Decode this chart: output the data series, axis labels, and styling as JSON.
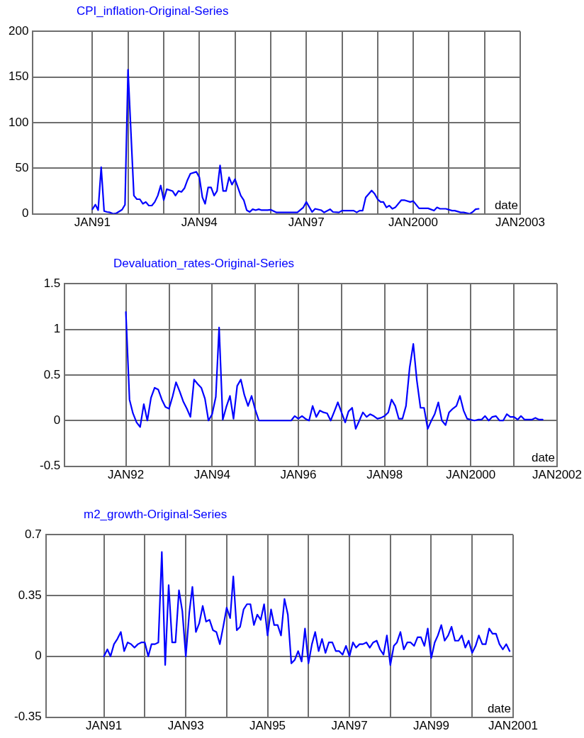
{
  "chart_data": [
    {
      "type": "line",
      "title": "CPI_inflation-Original-Series",
      "xlabel": "date",
      "grid": true,
      "xlim": [
        "1989-05",
        "2003-01"
      ],
      "xticks": [
        {
          "value": "1991-01",
          "label": "JAN91"
        },
        {
          "value": "1992-01",
          "label": null
        },
        {
          "value": "1993-01",
          "label": null
        },
        {
          "value": "1994-01",
          "label": "JAN94"
        },
        {
          "value": "1995-01",
          "label": null
        },
        {
          "value": "1996-01",
          "label": null
        },
        {
          "value": "1997-01",
          "label": "JAN97"
        },
        {
          "value": "1998-01",
          "label": null
        },
        {
          "value": "1999-01",
          "label": null
        },
        {
          "value": "2000-01",
          "label": "JAN2000"
        },
        {
          "value": "2001-01",
          "label": null
        },
        {
          "value": "2002-01",
          "label": null
        },
        {
          "value": "2003-01",
          "label": "JAN2003"
        }
      ],
      "ylim": [
        0,
        200
      ],
      "yticks": [
        0,
        50,
        100,
        150,
        200
      ],
      "series": [
        {
          "color": "#0000ff",
          "x": [
            "1991-01",
            "1991-02",
            "1991-03",
            "1991-04",
            "1991-05",
            "1991-06",
            "1991-07",
            "1991-08",
            "1991-09",
            "1991-11",
            "1991-12",
            "1992-01",
            "1992-03",
            "1992-04",
            "1992-05",
            "1992-06",
            "1992-07",
            "1992-08",
            "1992-09",
            "1992-10",
            "1992-11",
            "1992-12",
            "1993-01",
            "1993-02",
            "1993-04",
            "1993-05",
            "1993-06",
            "1993-07",
            "1993-08",
            "1993-09",
            "1993-10",
            "1993-12",
            "1994-01",
            "1994-02",
            "1994-03",
            "1994-04",
            "1994-05",
            "1994-06",
            "1994-07",
            "1994-08",
            "1994-09",
            "1994-10",
            "1994-11",
            "1994-12",
            "1995-01",
            "1995-03",
            "1995-04",
            "1995-05",
            "1995-06",
            "1995-07",
            "1995-08",
            "1995-09",
            "1995-10",
            "1995-12",
            "1996-01",
            "1996-03",
            "1996-06",
            "1996-10",
            "1996-12",
            "1997-01",
            "1997-03",
            "1997-04",
            "1997-06",
            "1997-07",
            "1997-09",
            "1997-10",
            "1997-12",
            "1998-01",
            "1998-05",
            "1998-06",
            "1998-07",
            "1998-08",
            "1998-09",
            "1998-11",
            "1998-12",
            "1999-01",
            "1999-02",
            "1999-03",
            "1999-04",
            "1999-05",
            "1999-06",
            "1999-07",
            "1999-09",
            "1999-10",
            "1999-12",
            "2000-01",
            "2000-03",
            "2000-06",
            "2000-08",
            "2000-09",
            "2000-10",
            "2000-12",
            "2001-02",
            "2001-03",
            "2001-05",
            "2001-06",
            "2001-08",
            "2001-09",
            "2001-10",
            "2001-11"
          ],
          "values": [
            5,
            10,
            4,
            51,
            3,
            2,
            1.5,
            0,
            0.5,
            4.5,
            10,
            158,
            20,
            16,
            16,
            11,
            13,
            9,
            9,
            13,
            20,
            31,
            15,
            27,
            25,
            20,
            25,
            24,
            28,
            37,
            44,
            46,
            40,
            18,
            11,
            29,
            29,
            20,
            25,
            53,
            25,
            25,
            40,
            32,
            38,
            20,
            15,
            4,
            2,
            5,
            4,
            5,
            4,
            4,
            4.5,
            1.5,
            1.5,
            1.5,
            7,
            13,
            2,
            5.5,
            4,
            1.5,
            5,
            2,
            1.5,
            3.5,
            3.5,
            1.5,
            3.5,
            3.5,
            18,
            25.5,
            22,
            16,
            13,
            13,
            7,
            9,
            5.5,
            7,
            15,
            15,
            13,
            14,
            6,
            6,
            3.5,
            7,
            5.5,
            5.5,
            3.5,
            3.5,
            1.5,
            1.5,
            0,
            2,
            5,
            5.5
          ]
        }
      ]
    },
    {
      "type": "line",
      "title": "Devaluation_rates-Original-Series",
      "xlabel": "date",
      "grid": true,
      "xlim": [
        "1990-08",
        "2002-01"
      ],
      "xticks": [
        {
          "value": "1992-01",
          "label": "JAN92"
        },
        {
          "value": "1993-01",
          "label": null
        },
        {
          "value": "1994-01",
          "label": "JAN94"
        },
        {
          "value": "1995-01",
          "label": null
        },
        {
          "value": "1996-01",
          "label": "JAN96"
        },
        {
          "value": "1997-01",
          "label": null
        },
        {
          "value": "1998-01",
          "label": "JAN98"
        },
        {
          "value": "1999-01",
          "label": null
        },
        {
          "value": "2000-01",
          "label": "JAN2000"
        },
        {
          "value": "2001-01",
          "label": null
        },
        {
          "value": "2002-01",
          "label": "JAN2002"
        }
      ],
      "ylim": [
        -0.5,
        1.5
      ],
      "yticks": [
        -0.5,
        0,
        0.5,
        1,
        1.5
      ],
      "series": [
        {
          "color": "#0000ff",
          "x": [
            "1992-01",
            "1992-02",
            "1992-03",
            "1992-04",
            "1992-05",
            "1992-06",
            "1992-07",
            "1992-08",
            "1992-09",
            "1992-10",
            "1992-11",
            "1992-12",
            "1993-01",
            "1993-02",
            "1993-03",
            "1993-04",
            "1993-05",
            "1993-06",
            "1993-07",
            "1993-08",
            "1993-09",
            "1993-10",
            "1993-11",
            "1993-12",
            "1994-01",
            "1994-02",
            "1994-03",
            "1994-04",
            "1994-05",
            "1994-06",
            "1994-07",
            "1994-08",
            "1994-09",
            "1994-10",
            "1994-11",
            "1994-12",
            "1995-01",
            "1995-02",
            "1995-11",
            "1995-12",
            "1996-01",
            "1996-02",
            "1996-03",
            "1996-04",
            "1996-05",
            "1996-06",
            "1996-07",
            "1996-08",
            "1996-09",
            "1996-10",
            "1996-11",
            "1996-12",
            "1997-02",
            "1997-03",
            "1997-04",
            "1997-05",
            "1997-06",
            "1997-07",
            "1997-08",
            "1997-09",
            "1997-10",
            "1997-11",
            "1997-12",
            "1998-01",
            "1998-02",
            "1998-03",
            "1998-04",
            "1998-05",
            "1998-06",
            "1998-07",
            "1998-08",
            "1998-09",
            "1998-10",
            "1998-11",
            "1998-12",
            "1999-01",
            "1999-02",
            "1999-03",
            "1999-04",
            "1999-05",
            "1999-06",
            "1999-07",
            "1999-08",
            "1999-09",
            "1999-10",
            "1999-11",
            "1999-12",
            "2000-01",
            "2000-02",
            "2000-03",
            "2000-04",
            "2000-05",
            "2000-06",
            "2000-07",
            "2000-08",
            "2000-09",
            "2000-10",
            "2000-11",
            "2000-12",
            "2001-01",
            "2001-02",
            "2001-03",
            "2001-04",
            "2001-06",
            "2001-07",
            "2001-08",
            "2001-09"
          ],
          "values": [
            1.19,
            0.23,
            0.08,
            -0.02,
            -0.07,
            0.18,
            0,
            0.25,
            0.36,
            0.34,
            0.23,
            0.15,
            0.13,
            0.27,
            0.42,
            0.32,
            0.21,
            0.13,
            0.04,
            0.45,
            0.4,
            0.36,
            0.24,
            0,
            0.07,
            0.26,
            1.02,
            0.01,
            0.15,
            0.27,
            0.02,
            0.38,
            0.45,
            0.28,
            0.16,
            0.27,
            0.12,
            0,
            0,
            0.05,
            0.02,
            0.05,
            0.02,
            0,
            0.16,
            0.04,
            0.11,
            0.09,
            0.08,
            0,
            0.1,
            0.2,
            -0.02,
            0.1,
            0.14,
            -0.09,
            0,
            0.09,
            0.04,
            0.07,
            0.05,
            0.02,
            0.03,
            0.05,
            0.09,
            0.23,
            0.16,
            0.02,
            0.02,
            0.16,
            0.58,
            0.84,
            0.44,
            0.14,
            0.14,
            -0.09,
            0,
            0.07,
            0.2,
            0,
            -0.05,
            0.09,
            0.13,
            0.16,
            0.27,
            0.11,
            0.02,
            0.01,
            0,
            0.01,
            0.01,
            0.05,
            0,
            0.04,
            0.05,
            0,
            0,
            0.07,
            0.04,
            0.04,
            0.01,
            0.05,
            0.01,
            0.01,
            0.03,
            0.01,
            0.01
          ]
        }
      ]
    },
    {
      "type": "line",
      "title": "m2_growth-Original-Series",
      "xlabel": "date",
      "grid": true,
      "xlim": [
        "1989-08",
        "2001-01"
      ],
      "xticks": [
        {
          "value": "1991-01",
          "label": "JAN91"
        },
        {
          "value": "1992-01",
          "label": null
        },
        {
          "value": "1993-01",
          "label": "JAN93"
        },
        {
          "value": "1994-01",
          "label": null
        },
        {
          "value": "1995-01",
          "label": "JAN95"
        },
        {
          "value": "1996-01",
          "label": null
        },
        {
          "value": "1997-01",
          "label": "JAN97"
        },
        {
          "value": "1998-01",
          "label": null
        },
        {
          "value": "1999-01",
          "label": "JAN99"
        },
        {
          "value": "2000-01",
          "label": null
        },
        {
          "value": "2001-01",
          "label": "JAN2001"
        }
      ],
      "ylim": [
        -0.35,
        0.7
      ],
      "yticks": [
        -0.35,
        0,
        0.35,
        0.7
      ],
      "series": [
        {
          "color": "#0000ff",
          "x": [
            "1991-01",
            "1991-02",
            "1991-03",
            "1991-04",
            "1991-05",
            "1991-06",
            "1991-07",
            "1991-08",
            "1991-09",
            "1991-10",
            "1991-11",
            "1991-12",
            "1992-01",
            "1992-02",
            "1992-03",
            "1992-04",
            "1992-05",
            "1992-06",
            "1992-07",
            "1992-08",
            "1992-09",
            "1992-10",
            "1992-11",
            "1992-12",
            "1993-01",
            "1993-02",
            "1993-03",
            "1993-04",
            "1993-05",
            "1993-06",
            "1993-07",
            "1993-08",
            "1993-09",
            "1993-10",
            "1993-11",
            "1993-12",
            "1994-01",
            "1994-02",
            "1994-03",
            "1994-04",
            "1994-05",
            "1994-06",
            "1994-07",
            "1994-08",
            "1994-09",
            "1994-10",
            "1994-11",
            "1994-12",
            "1995-01",
            "1995-02",
            "1995-03",
            "1995-04",
            "1995-05",
            "1995-06",
            "1995-07",
            "1995-08",
            "1995-09",
            "1995-10",
            "1995-11",
            "1995-12",
            "1996-01",
            "1996-02",
            "1996-03",
            "1996-04",
            "1996-05",
            "1996-06",
            "1996-07",
            "1996-08",
            "1996-09",
            "1996-10",
            "1996-11",
            "1996-12",
            "1997-01",
            "1997-02",
            "1997-03",
            "1997-04",
            "1997-05",
            "1997-06",
            "1997-07",
            "1997-08",
            "1997-09",
            "1997-10",
            "1997-11",
            "1997-12",
            "1998-01",
            "1998-02",
            "1998-03",
            "1998-04",
            "1998-05",
            "1998-06",
            "1998-07",
            "1998-08",
            "1998-09",
            "1998-10",
            "1998-11",
            "1998-12",
            "1999-01",
            "1999-02",
            "1999-03",
            "1999-04",
            "1999-05",
            "1999-06",
            "1999-07",
            "1999-08",
            "1999-09",
            "1999-10",
            "1999-11",
            "1999-12",
            "2000-01",
            "2000-02",
            "2000-03",
            "2000-04",
            "2000-05",
            "2000-06",
            "2000-07",
            "2000-08",
            "2000-09",
            "2000-10",
            "2000-11",
            "2000-12"
          ],
          "values": [
            0,
            0.04,
            0,
            0.07,
            0.1,
            0.14,
            0.03,
            0.08,
            0.07,
            0.05,
            0.07,
            0.08,
            0.08,
            0,
            0.07,
            0.07,
            0.08,
            0.6,
            -0.05,
            0.41,
            0.08,
            0.08,
            0.38,
            0.26,
            0,
            0.25,
            0.4,
            0.14,
            0.19,
            0.29,
            0.2,
            0.21,
            0.15,
            0.14,
            0.07,
            0.17,
            0.28,
            0.22,
            0.46,
            0.15,
            0.17,
            0.27,
            0.3,
            0.3,
            0.18,
            0.24,
            0.21,
            0.3,
            0.12,
            0.27,
            0.18,
            0.18,
            0.12,
            0.33,
            0.24,
            -0.04,
            -0.02,
            0.03,
            -0.03,
            0.16,
            -0.04,
            0.07,
            0.14,
            0.03,
            0.1,
            0.02,
            0.08,
            0.08,
            0.03,
            0.03,
            0.01,
            0.06,
            0,
            0.08,
            0.05,
            0.07,
            0.07,
            0.08,
            0.05,
            0.08,
            0.09,
            0.04,
            0.01,
            0.12,
            -0.05,
            0.06,
            0.08,
            0.14,
            0.04,
            0.08,
            0.08,
            0.06,
            0.11,
            0.11,
            0.06,
            0.16,
            -0.01,
            0.08,
            0.12,
            0.18,
            0.09,
            0.12,
            0.17,
            0.09,
            0.09,
            0.12,
            0.05,
            0.09,
            0.02,
            0.06,
            0.12,
            0.07,
            0.07,
            0.16,
            0.13,
            0.13,
            0.07,
            0.04,
            0.07,
            0.03
          ]
        }
      ]
    }
  ]
}
